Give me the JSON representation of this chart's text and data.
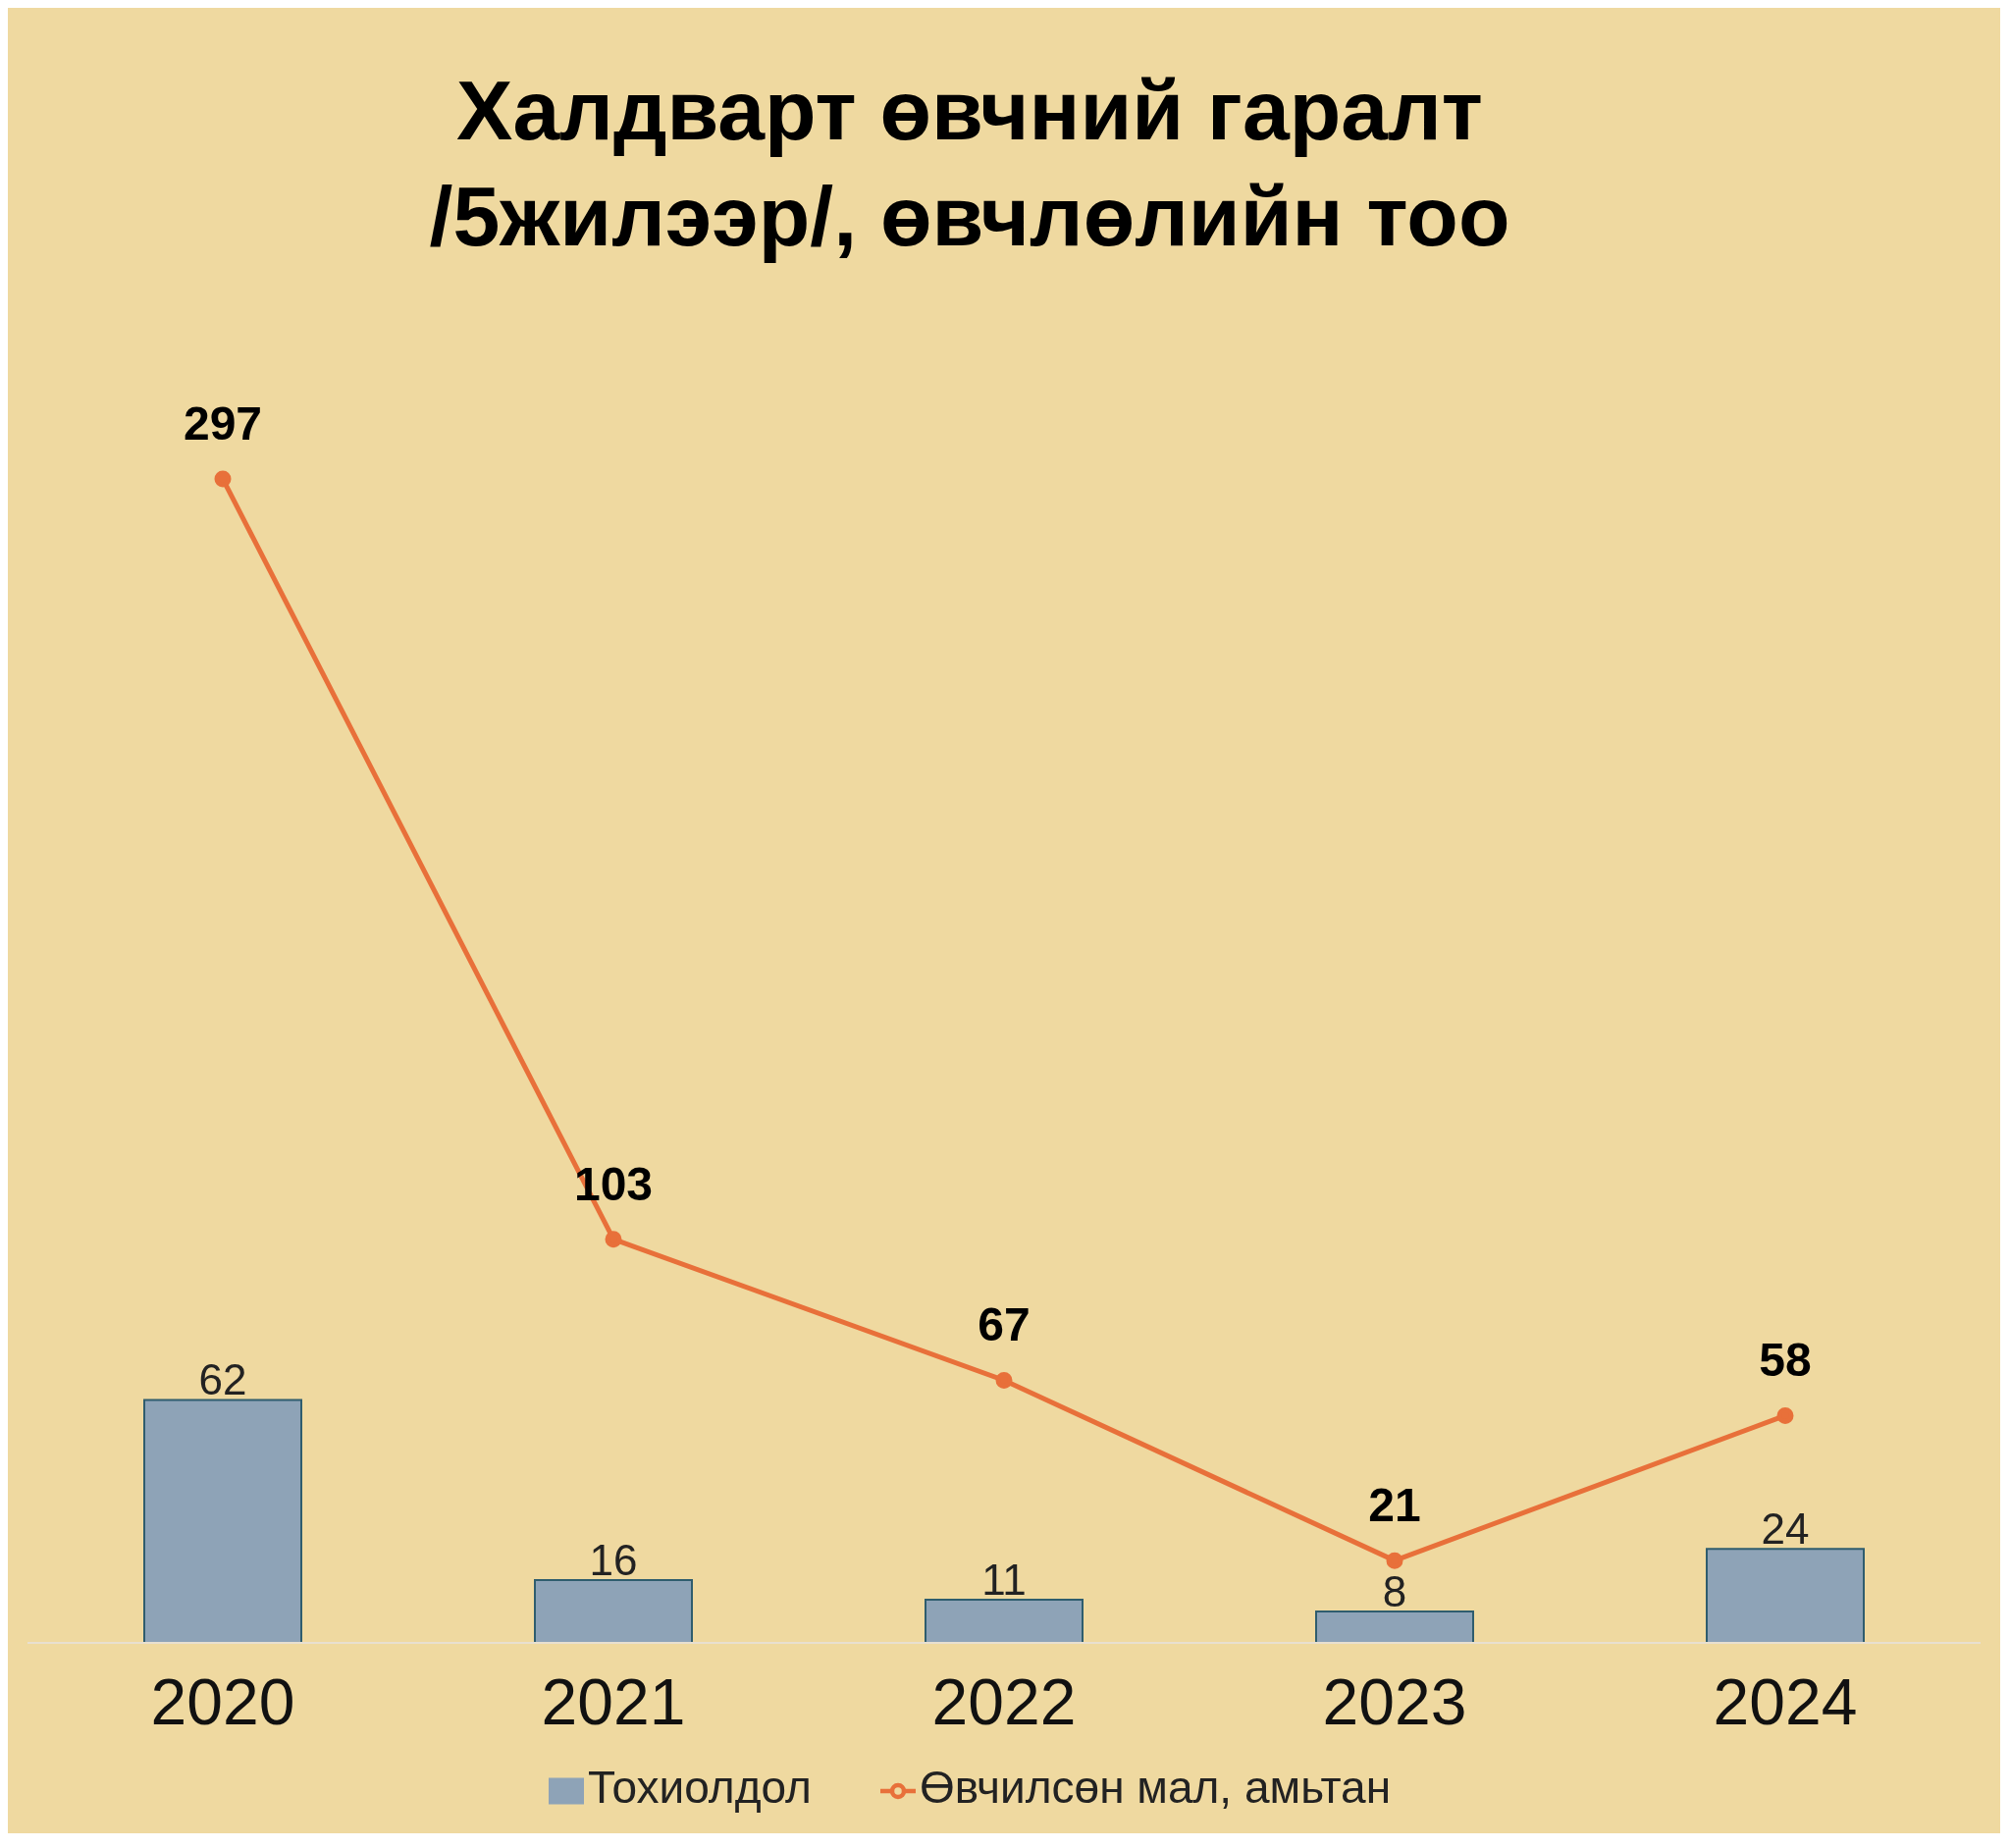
{
  "chart_data": {
    "type": "bar",
    "title": "Халдварт өвчний гаралт\n/5жилээр/, өвчлөлийн тоо",
    "categories": [
      "2020",
      "2021",
      "2022",
      "2023",
      "2024"
    ],
    "series": [
      {
        "name": "Тохиолдол",
        "color": "#8ea3b7",
        "values": [
          62,
          16,
          11,
          8,
          24
        ]
      },
      {
        "name": "Өвчилсөн мал, амьтан",
        "type": "line",
        "color": "#e8703a",
        "values": [
          297,
          103,
          67,
          21,
          58
        ]
      }
    ],
    "data_labels": true,
    "legend": "bottom",
    "marker": "circle",
    "grid": false
  }
}
